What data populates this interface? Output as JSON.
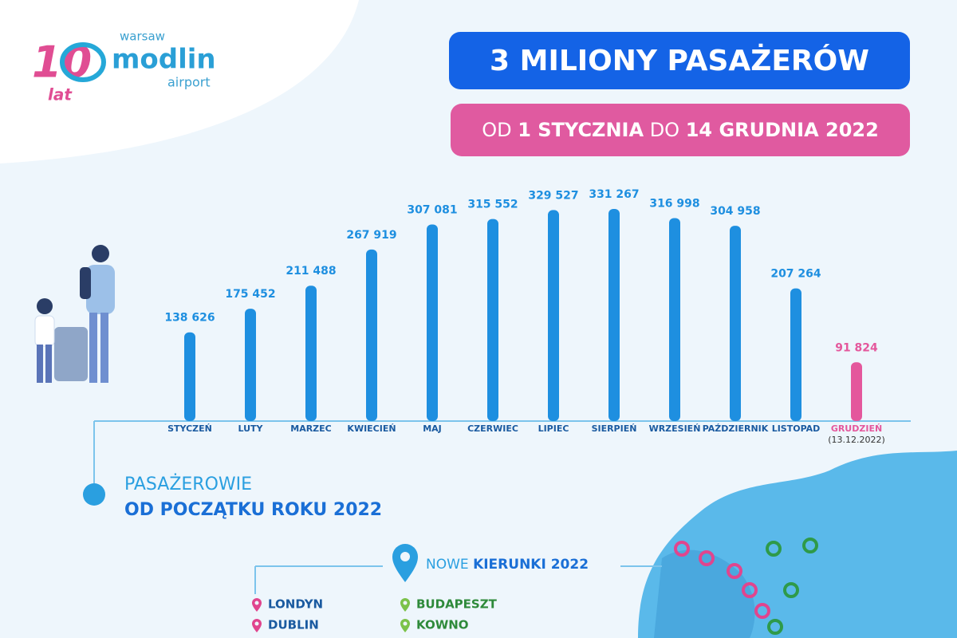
{
  "logo": {
    "number": "10",
    "lat": "lat",
    "city": "warsaw",
    "name": "modlin",
    "kind": "airport"
  },
  "chart_data": {
    "type": "bar",
    "title": "3 MILIONY PASAŻERÓW",
    "subtitle_parts": [
      "OD",
      "1 STYCZNIA",
      "DO",
      "14 GRUDNIA 2022"
    ],
    "categories": [
      "STYCZEŃ",
      "LUTY",
      "MARZEC",
      "KWIECIEŃ",
      "MAJ",
      "CZERWIEC",
      "LIPIEC",
      "SIERPIEŃ",
      "WRZESIEŃ",
      "PAŹDZIERNIK",
      "LISTOPAD",
      "GRUDZIEŃ"
    ],
    "values": [
      138626,
      175452,
      211488,
      267919,
      307081,
      315552,
      329527,
      331267,
      316998,
      304958,
      207264,
      91824
    ],
    "value_labels": [
      "138 626",
      "175 452",
      "211 488",
      "267 919",
      "307 081",
      "315 552",
      "329 527",
      "331 267",
      "316 998",
      "304 958",
      "207 264",
      "91 824"
    ],
    "colors": [
      "#1e8fe0",
      "#1e8fe0",
      "#1e8fe0",
      "#1e8fe0",
      "#1e8fe0",
      "#1e8fe0",
      "#1e8fe0",
      "#1e8fe0",
      "#1e8fe0",
      "#1e8fe0",
      "#1e8fe0",
      "#e4579c"
    ],
    "annotation": "(13.12.2022)",
    "ylim": [
      0,
      350000
    ]
  },
  "summary": {
    "line1": "PASAŻEROWIE",
    "line2": "OD POCZĄTKU ROKU 2022"
  },
  "destinations": {
    "heading_light": "NOWE",
    "heading_bold": "KIERUNKI 2022",
    "pink": [
      "LONDYN",
      "DUBLIN"
    ],
    "green": [
      "BUDAPESZT",
      "KOWNO"
    ]
  }
}
